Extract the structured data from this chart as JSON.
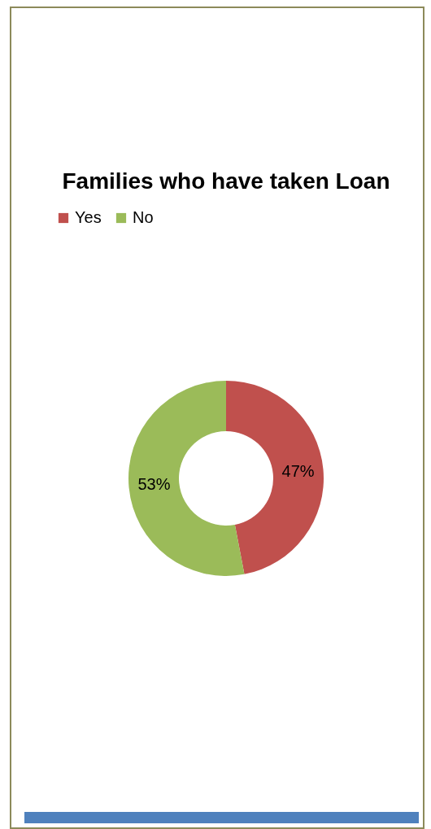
{
  "chart_data": {
    "type": "donut",
    "title": "Families who have taken Loan",
    "categories": [
      "Yes",
      "No"
    ],
    "values": [
      47,
      53
    ],
    "colors": [
      "#c0504d",
      "#9bbb59"
    ],
    "value_labels": [
      "47%",
      "53%"
    ],
    "legend": "top"
  }
}
